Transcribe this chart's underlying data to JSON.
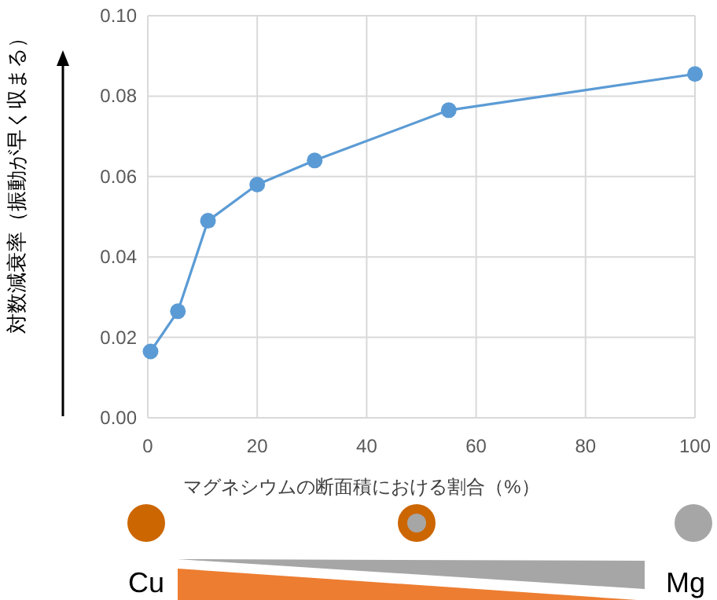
{
  "chart_data": {
    "type": "line",
    "xlabel": "マグネシウムの断面積における割合（%）",
    "ylabel": "対数減衰率（振動が早く収まる）",
    "annotations": [
      "Cu",
      "Mg"
    ],
    "x": [
      0.5,
      5.5,
      11,
      20,
      30.5,
      55,
      100
    ],
    "series": [
      {
        "color": "#5b9bd5",
        "values": [
          0.0165,
          0.0265,
          0.049,
          0.058,
          0.064,
          0.0765,
          0.0855
        ]
      }
    ],
    "xlim": [
      0,
      100
    ],
    "xticks": [
      0,
      20,
      40,
      60,
      80,
      100
    ],
    "ylim": [
      0,
      0.1
    ],
    "yticks": [
      {
        "value": 0,
        "label": "0.00"
      },
      {
        "value": 0.02,
        "label": "0.02"
      },
      {
        "value": 0.04,
        "label": "0.04"
      },
      {
        "value": 0.06,
        "label": "0.06"
      },
      {
        "value": 0.08,
        "label": "0.08"
      },
      {
        "value": 0.1,
        "label": "0.10"
      }
    ],
    "grid": true,
    "marker": "circle",
    "line_style": "solid"
  }
}
